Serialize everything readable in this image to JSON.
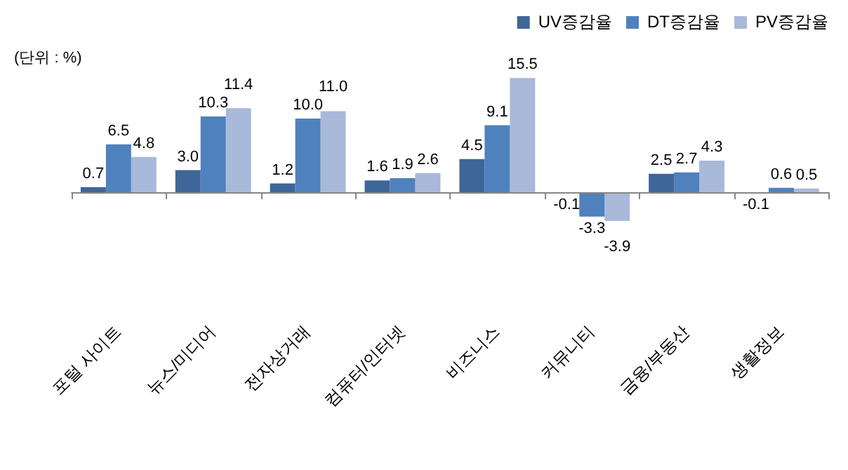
{
  "chart_data": {
    "type": "bar",
    "annotations": [
      "(단위 : %)"
    ],
    "categories": [
      "포털 사이트",
      "뉴스/미디어",
      "전자상거래",
      "컴퓨터/인터넷",
      "비즈니스",
      "커뮤니티",
      "금융/부동산",
      "생활정보"
    ],
    "series": [
      {
        "name": "UV증감율",
        "color": "#3f6698",
        "values": [
          0.7,
          3.0,
          1.2,
          1.6,
          4.5,
          -0.1,
          2.5,
          -0.1
        ],
        "value_labels": [
          "0.7",
          "3.0",
          "1.2",
          "1.6",
          "4.5",
          "-0.1",
          "2.5",
          "-0.1"
        ]
      },
      {
        "name": "DT증감율",
        "color": "#4f81bd",
        "values": [
          6.5,
          10.3,
          10.0,
          1.9,
          9.1,
          -3.3,
          2.7,
          0.6
        ],
        "value_labels": [
          "6.5",
          "10.3",
          "10.0",
          "1.9",
          "9.1",
          "-3.3",
          "2.7",
          "0.6"
        ]
      },
      {
        "name": "PV증감율",
        "color": "#a9b9d9",
        "values": [
          4.8,
          11.4,
          11.0,
          2.6,
          15.5,
          -3.9,
          4.3,
          0.5
        ],
        "value_labels": [
          "4.8",
          "11.4",
          "11.0",
          "2.6",
          "15.5",
          "-3.9",
          "4.3",
          "0.5"
        ]
      }
    ],
    "legend": "top right",
    "grid": false
  }
}
